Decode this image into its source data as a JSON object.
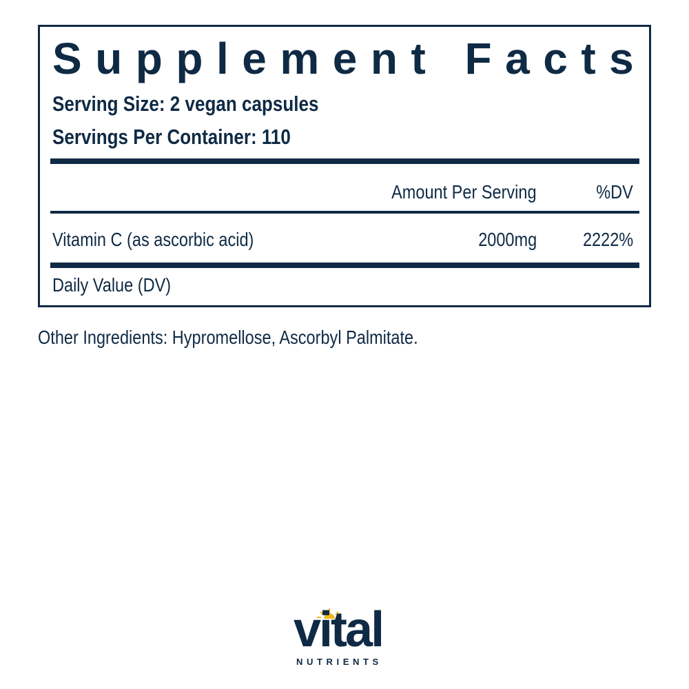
{
  "panel": {
    "title": "Supplement Facts",
    "serving_size": "Serving Size: 2 vegan capsules",
    "servings_per_container": "Servings Per Container: 110",
    "header": {
      "amount": "Amount Per Serving",
      "dv": "%DV"
    },
    "rows": [
      {
        "name": "Vitamin C (as ascorbic acid)",
        "amount": "2000mg",
        "dv": "2222%"
      }
    ],
    "footnote": "Daily Value (DV)"
  },
  "other_ingredients": "Other Ingredients: Hypromellose, Ascorbyl Palmitate.",
  "logo": {
    "word": "vital",
    "sub": "NUTRIENTS"
  },
  "colors": {
    "text": "#0f2a44",
    "sun": "#f2b81c"
  }
}
